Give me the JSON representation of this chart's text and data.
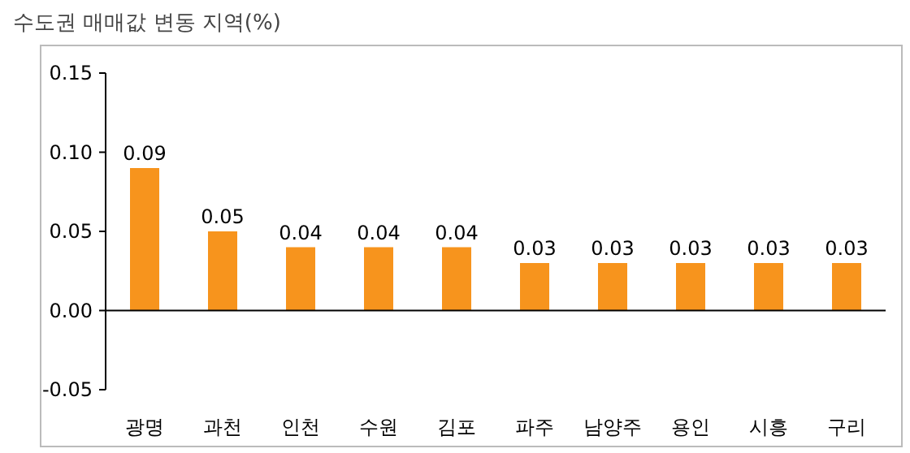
{
  "chart_data": {
    "type": "bar",
    "title": "수도권 매매값 변동 지역(%)",
    "categories": [
      "광명",
      "과천",
      "인천",
      "수원",
      "김포",
      "파주",
      "남양주",
      "용인",
      "시흥",
      "구리"
    ],
    "values": [
      0.09,
      0.05,
      0.04,
      0.04,
      0.04,
      0.03,
      0.03,
      0.03,
      0.03,
      0.03
    ],
    "color": "#f7941d",
    "data_labels": true,
    "ylim": [
      -0.05,
      0.15
    ],
    "yticks": [
      -0.05,
      {
        "value": 0,
        "label": "0.00"
      },
      0.05,
      {
        "value": 0.1,
        "label": "0.10"
      },
      0.15
    ]
  }
}
